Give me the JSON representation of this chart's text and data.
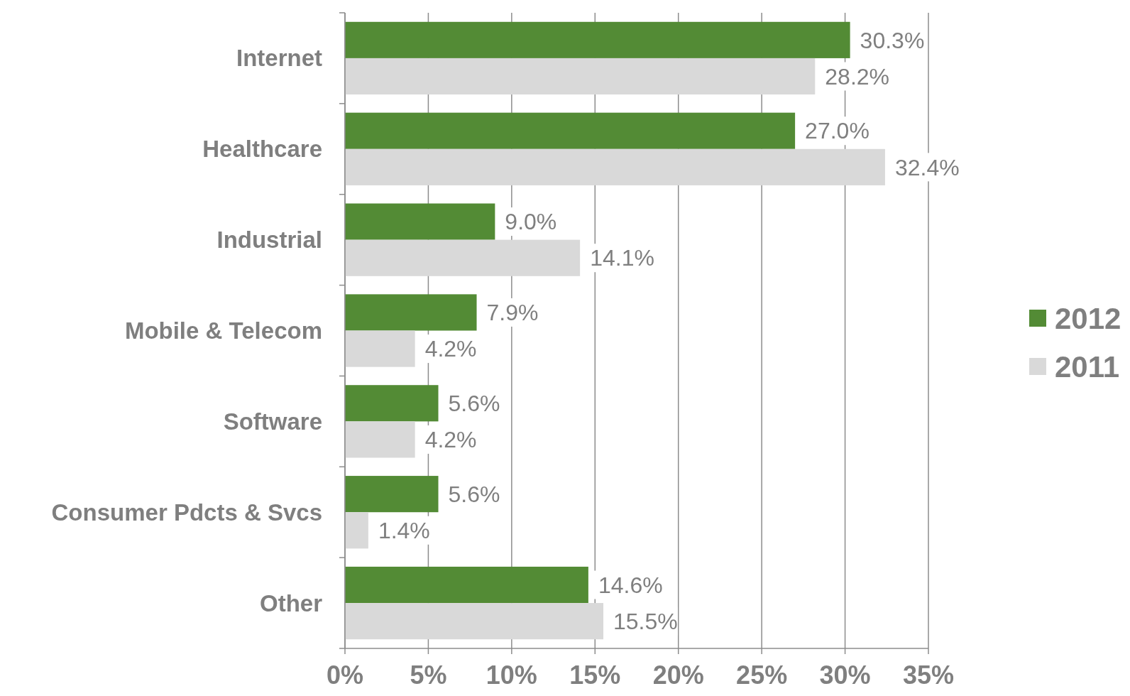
{
  "chart_data": {
    "type": "bar",
    "orientation": "horizontal",
    "categories": [
      "Internet",
      "Healthcare",
      "Industrial",
      "Mobile & Telecom",
      "Software",
      "Consumer Pdcts & Svcs",
      "Other"
    ],
    "series": [
      {
        "name": "2012",
        "color": "#538b35",
        "values": [
          30.3,
          27.0,
          9.0,
          7.9,
          5.6,
          5.6,
          14.6
        ],
        "value_labels": [
          "30.3%",
          "27.0%",
          "9.0%",
          "7.9%",
          "5.6%",
          "5.6%",
          "14.6%"
        ]
      },
      {
        "name": "2011",
        "color": "#d9d9d9",
        "values": [
          28.2,
          32.4,
          14.1,
          4.2,
          4.2,
          1.4,
          15.5
        ],
        "value_labels": [
          "28.2%",
          "32.4%",
          "14.1%",
          "4.2%",
          "4.2%",
          "1.4%",
          "15.5%"
        ]
      }
    ],
    "xlim": [
      0,
      35
    ],
    "xticks": [
      {
        "value": 0,
        "label": "0%"
      },
      {
        "value": 5,
        "label": "5%"
      },
      {
        "value": 10,
        "label": "10%"
      },
      {
        "value": 15,
        "label": "15%"
      },
      {
        "value": 20,
        "label": "20%"
      },
      {
        "value": 25,
        "label": "25%"
      },
      {
        "value": 30,
        "label": "30%"
      },
      {
        "value": 35,
        "label": "35%"
      }
    ],
    "grid": "x",
    "legend": "right"
  }
}
